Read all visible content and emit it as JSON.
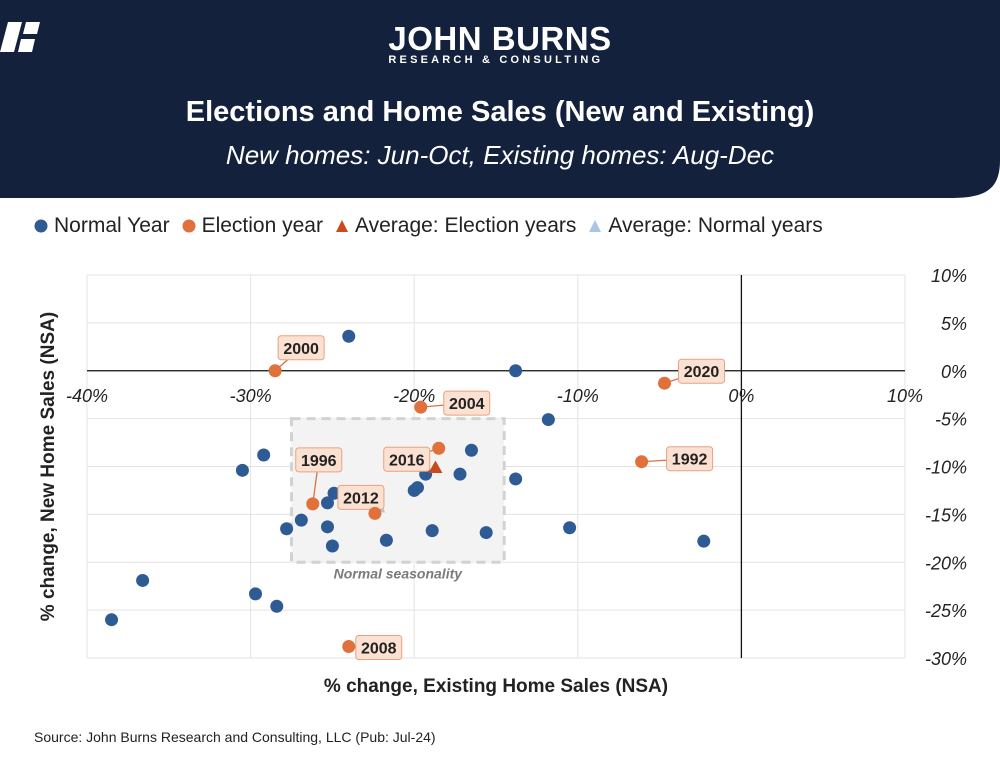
{
  "header": {
    "brand_name": "JOHN BURNS",
    "brand_tagline": "RESEARCH & CONSULTING",
    "title": "Elections and Home Sales (New and Existing)",
    "subtitle": "New homes: Jun-Oct, Existing homes: Aug-Dec",
    "background_color": "#14213d"
  },
  "legend": [
    {
      "label": "Normal Year",
      "shape": "circle",
      "color": "#2f5b94"
    },
    {
      "label": "Election year",
      "shape": "circle",
      "color": "#e0703c"
    },
    {
      "label": "Average: Election years",
      "shape": "triangle",
      "color": "#c84b20"
    },
    {
      "label": "Average: Normal years",
      "shape": "triangle",
      "color": "#a9c6e3"
    }
  ],
  "source": "Source: John Burns Research and Consulting, LLC (Pub: Jul-24)",
  "chart_data": {
    "type": "scatter",
    "xlabel": "% change, Existing Home Sales (NSA)",
    "ylabel": "% change, New Home Sales (NSA)",
    "xlim": [
      -40,
      10
    ],
    "ylim": [
      -30,
      10
    ],
    "x_ticks": [
      -40,
      -30,
      -20,
      -10,
      0,
      10
    ],
    "y_ticks": [
      10,
      5,
      0,
      -5,
      -10,
      -15,
      -20,
      -25,
      -30
    ],
    "x_tick_labels": [
      "-40%",
      "-30%",
      "-20%",
      "-10%",
      "0%",
      "10%"
    ],
    "y_tick_labels": [
      "10%",
      "5%",
      "0%",
      "-5%",
      "-10%",
      "-15%",
      "-20%",
      "-25%",
      "-30%"
    ],
    "grid": true,
    "series": [
      {
        "name": "Normal Year",
        "color": "#2f5b94",
        "points": [
          {
            "x": -24,
            "y": 3.6
          },
          {
            "x": -13.8,
            "y": 0
          },
          {
            "x": -11.8,
            "y": -5.1
          },
          {
            "x": -30.5,
            "y": -10.4
          },
          {
            "x": -29.2,
            "y": -8.8
          },
          {
            "x": -16.5,
            "y": -8.3
          },
          {
            "x": -13.8,
            "y": -11.3
          },
          {
            "x": -17.2,
            "y": -10.8
          },
          {
            "x": -19.3,
            "y": -10.8
          },
          {
            "x": -20,
            "y": -12.5
          },
          {
            "x": -19.8,
            "y": -12.2
          },
          {
            "x": -24.9,
            "y": -12.8
          },
          {
            "x": -25.3,
            "y": -13.8
          },
          {
            "x": -26.9,
            "y": -15.6
          },
          {
            "x": -25.3,
            "y": -16.3
          },
          {
            "x": -27.8,
            "y": -16.5
          },
          {
            "x": -25,
            "y": -18.3
          },
          {
            "x": -21.7,
            "y": -17.7
          },
          {
            "x": -18.9,
            "y": -16.7
          },
          {
            "x": -15.6,
            "y": -16.9
          },
          {
            "x": -10.5,
            "y": -16.4
          },
          {
            "x": -2.3,
            "y": -17.8
          },
          {
            "x": -36.6,
            "y": -21.9
          },
          {
            "x": -29.7,
            "y": -23.3
          },
          {
            "x": -28.4,
            "y": -24.6
          },
          {
            "x": -38.5,
            "y": -26
          }
        ]
      },
      {
        "name": "Election year",
        "color": "#e0703c",
        "points": [
          {
            "x": -28.5,
            "y": 0,
            "label": "2000"
          },
          {
            "x": -19.6,
            "y": -3.8,
            "label": "2004"
          },
          {
            "x": -4.7,
            "y": -1.3,
            "label": "2020"
          },
          {
            "x": -18.5,
            "y": -8.1,
            "label": "2016"
          },
          {
            "x": -6.1,
            "y": -9.5,
            "label": "1992"
          },
          {
            "x": -26.2,
            "y": -13.9,
            "label": "1996"
          },
          {
            "x": -22.4,
            "y": -14.9,
            "label": "2012"
          },
          {
            "x": -24,
            "y": -28.8,
            "label": "2008"
          }
        ]
      },
      {
        "name": "Average: Election years",
        "color": "#c84b20",
        "points": [
          {
            "x": -18.7,
            "y": -10.1
          }
        ]
      },
      {
        "name": "Average: Normal years",
        "color": "#a9c6e3",
        "points": [
          {
            "x": -22.2,
            "y": -14.2
          }
        ]
      }
    ],
    "annotations": [
      {
        "text": "Normal seasonality",
        "x_range": [
          -27.5,
          -14.5
        ],
        "y_range": [
          -20,
          -5
        ]
      }
    ]
  }
}
